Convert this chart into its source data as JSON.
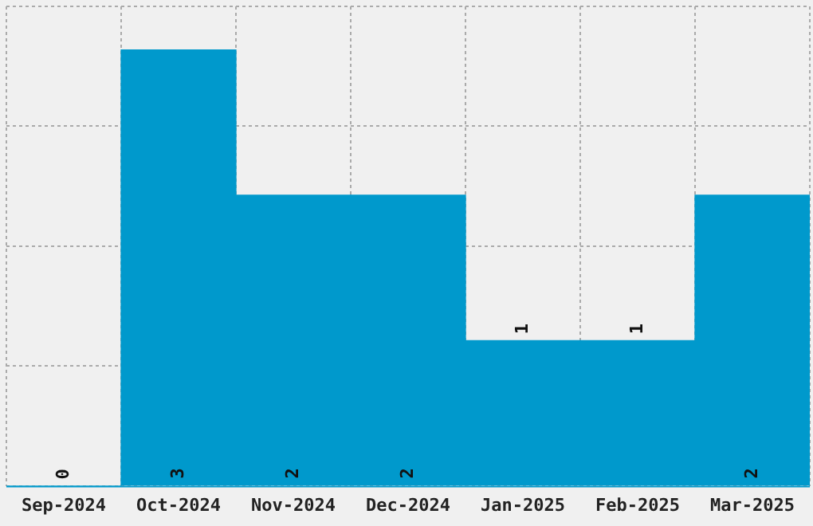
{
  "chart_data": {
    "type": "bar",
    "categories": [
      "Sep-2024",
      "Oct-2024",
      "Nov-2024",
      "Dec-2024",
      "Jan-2025",
      "Feb-2025",
      "Mar-2025"
    ],
    "values": [
      0,
      3,
      2,
      2,
      1,
      1,
      2
    ],
    "color": "#0099cc",
    "ylim": [
      0,
      3.3
    ],
    "yticks": [
      {
        "value": 0,
        "label": null
      },
      {
        "value": 0.825,
        "label": null
      },
      {
        "value": 1.65,
        "label": null
      },
      {
        "value": 2.475,
        "label": null
      },
      {
        "value": 3.3,
        "label": null
      }
    ],
    "tick_labels": "x",
    "grid": true,
    "legend": false,
    "data_labels": true
  }
}
